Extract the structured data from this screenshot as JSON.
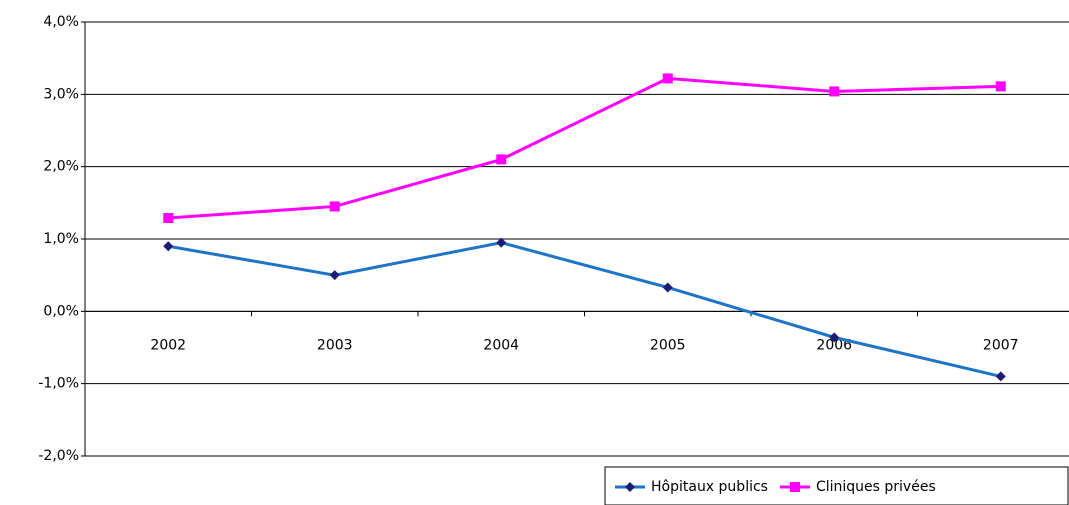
{
  "chart_data": {
    "type": "line",
    "categories": [
      "2002",
      "2003",
      "2004",
      "2005",
      "2006",
      "2007"
    ],
    "series": [
      {
        "name": "Hôpitaux publics",
        "color": "#1e74c9",
        "marker_color": "#1c1c78",
        "marker": "diamond",
        "values": [
          0.9,
          0.5,
          0.95,
          0.33,
          -0.36,
          -0.9
        ]
      },
      {
        "name": "Cliniques privées",
        "color": "#ff00ff",
        "marker_color": "#ff00ff",
        "marker": "square",
        "values": [
          1.29,
          1.45,
          2.1,
          3.22,
          3.04,
          3.11
        ]
      }
    ],
    "ylim": [
      -2,
      4
    ],
    "yticks": [
      {
        "value": -2,
        "label": "-2,0%"
      },
      {
        "value": -1,
        "label": "-1,0%"
      },
      {
        "value": 0,
        "label": "0,0%"
      },
      {
        "value": 1,
        "label": "1,0%"
      },
      {
        "value": 2,
        "label": "2,0%"
      },
      {
        "value": 3,
        "label": "3,0%"
      },
      {
        "value": 4,
        "label": "4,0%"
      }
    ],
    "grid": true,
    "legend": "bottom-right"
  }
}
